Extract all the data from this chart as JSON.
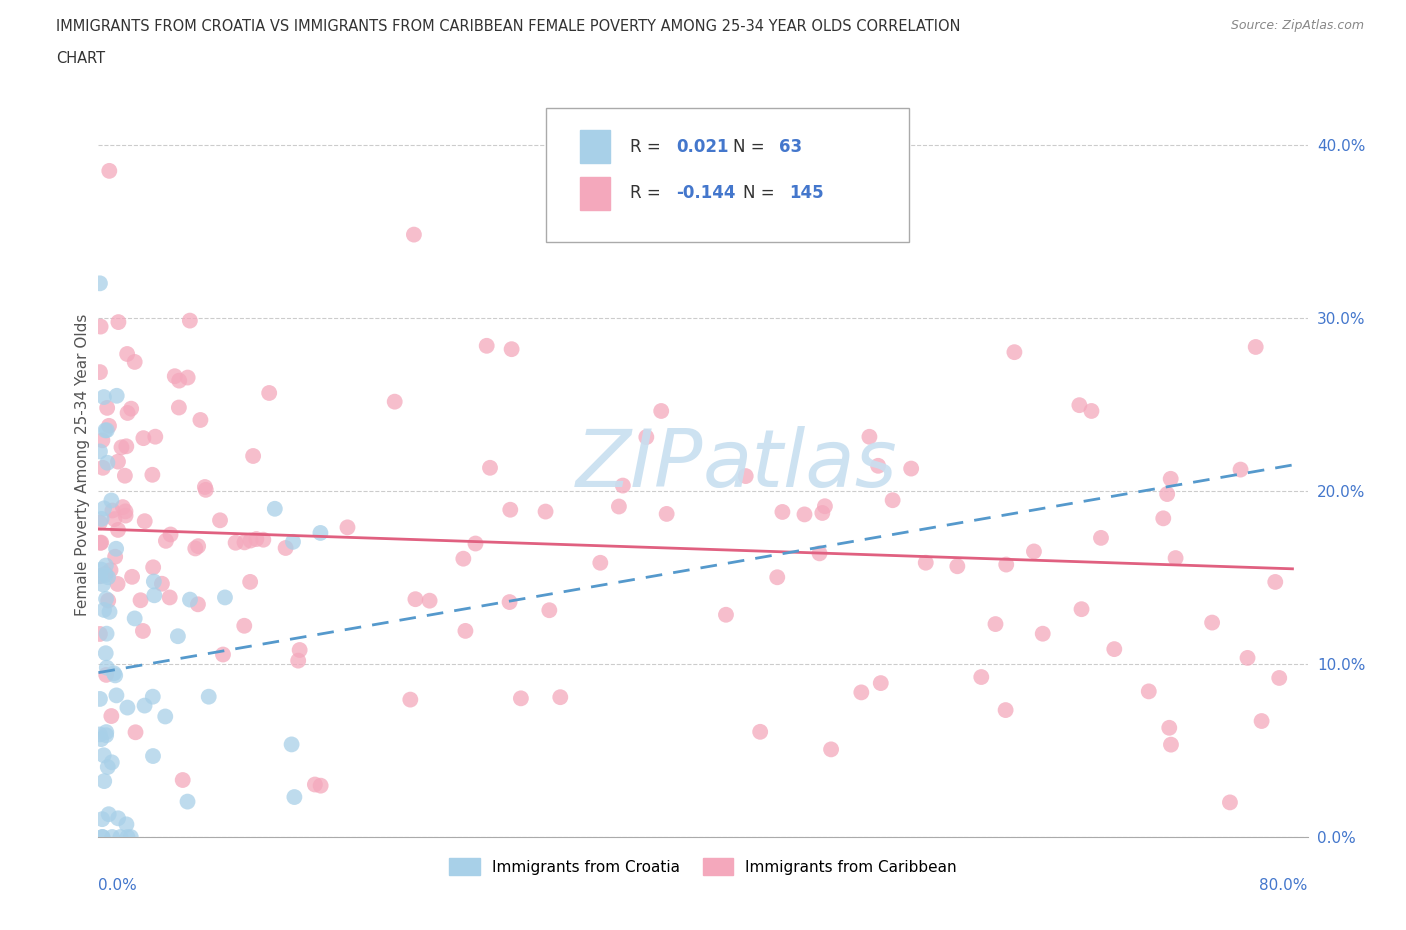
{
  "title_line1": "IMMIGRANTS FROM CROATIA VS IMMIGRANTS FROM CARIBBEAN FEMALE POVERTY AMONG 25-34 YEAR OLDS CORRELATION",
  "title_line2": "CHART",
  "source": "Source: ZipAtlas.com",
  "ylabel": "Female Poverty Among 25-34 Year Olds",
  "color_croatia": "#a8d0e8",
  "color_caribbean": "#f4a8bc",
  "trendline_croatia_color": "#5599cc",
  "trendline_caribbean_color": "#e06080",
  "text_dark": "#333333",
  "text_blue": "#4477cc",
  "watermark_color": "#c8dff0",
  "xlim": [
    0.0,
    0.8
  ],
  "ylim": [
    0.0,
    0.43
  ],
  "y_ticks": [
    0.0,
    0.1,
    0.2,
    0.3,
    0.4
  ],
  "legend_r_croatia": "0.021",
  "legend_n_croatia": "63",
  "legend_r_caribbean": "-0.144",
  "legend_n_caribbean": "145"
}
